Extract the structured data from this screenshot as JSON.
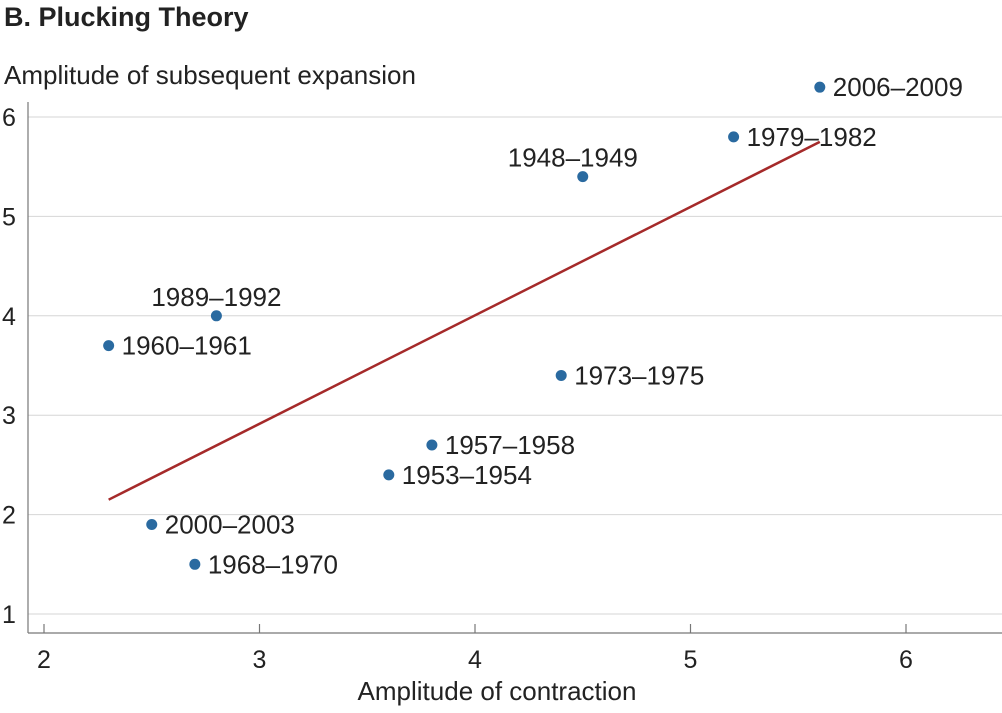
{
  "title": "B. Plucking Theory",
  "chart_data": {
    "type": "scatter",
    "title": "B. Plucking Theory",
    "xlabel": "Amplitude of contraction",
    "ylabel": "Amplitude of subsequent expansion",
    "xlim": [
      1.95,
      6.45
    ],
    "ylim": [
      0.95,
      6.2
    ],
    "xticks": [
      2,
      3,
      4,
      5,
      6
    ],
    "yticks": [
      1,
      2,
      3,
      4,
      5,
      6
    ],
    "grid": "horizontal",
    "point_color": "#2a6aa0",
    "line_color": "#a52a2a",
    "points": [
      {
        "label": "2006–2009",
        "x": 5.6,
        "y": 6.3,
        "label_pos": "right"
      },
      {
        "label": "1979–1982",
        "x": 5.2,
        "y": 5.8,
        "label_pos": "right"
      },
      {
        "label": "1948–1949",
        "x": 4.5,
        "y": 5.4,
        "label_pos": "above-left"
      },
      {
        "label": "1989–1992",
        "x": 2.8,
        "y": 4.0,
        "label_pos": "above"
      },
      {
        "label": "1960–1961",
        "x": 2.3,
        "y": 3.7,
        "label_pos": "right"
      },
      {
        "label": "1973–1975",
        "x": 4.4,
        "y": 3.4,
        "label_pos": "right"
      },
      {
        "label": "1957–1958",
        "x": 3.8,
        "y": 2.7,
        "label_pos": "right"
      },
      {
        "label": "1953–1954",
        "x": 3.6,
        "y": 2.4,
        "label_pos": "right"
      },
      {
        "label": "2000–2003",
        "x": 2.5,
        "y": 1.9,
        "label_pos": "right"
      },
      {
        "label": "1968–1970",
        "x": 2.7,
        "y": 1.5,
        "label_pos": "right"
      }
    ],
    "trend_line": {
      "x1": 2.3,
      "y1": 2.15,
      "x2": 5.6,
      "y2": 5.75
    }
  }
}
